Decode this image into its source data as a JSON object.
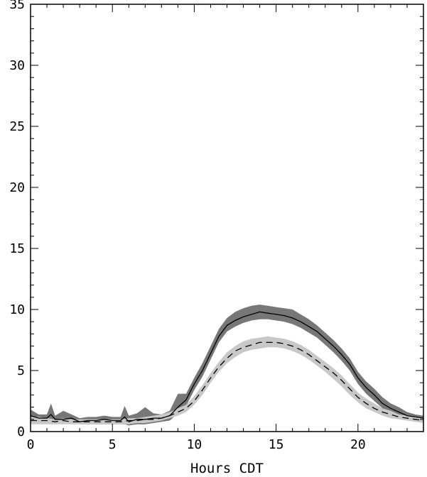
{
  "chart_data": {
    "type": "line",
    "title": "",
    "xlabel": "Hours CDT",
    "ylabel": "",
    "xlim": [
      0,
      24
    ],
    "ylim": [
      0,
      35
    ],
    "x_ticks": [
      0,
      5,
      10,
      15,
      20
    ],
    "y_ticks": [
      0,
      5,
      10,
      15,
      20,
      25,
      30,
      35
    ],
    "x_tick_labels": [
      "0",
      "5",
      "10",
      "15",
      "20"
    ],
    "y_tick_labels": [
      "0",
      "5",
      "10",
      "15",
      "20",
      "25",
      "30",
      "35"
    ],
    "grid": false,
    "legend": "none",
    "series": [
      {
        "style": "solid",
        "line_color": "#000000",
        "band_color": "#777777",
        "x": [
          0,
          0.5,
          1,
          1.25,
          1.5,
          2,
          2.5,
          3,
          3.5,
          4,
          4.5,
          5,
          5.5,
          5.75,
          6,
          6.5,
          7,
          7.5,
          8,
          8.5,
          9,
          9.5,
          10,
          10.5,
          11,
          11.5,
          12,
          12.5,
          13,
          13.5,
          14,
          14.5,
          15,
          15.5,
          16,
          16.5,
          17,
          17.5,
          18,
          18.5,
          19,
          19.5,
          20,
          20.5,
          21,
          21.5,
          22,
          22.5,
          23,
          23.5,
          24
        ],
        "values": [
          1.3,
          1.1,
          1.1,
          1.4,
          1.0,
          1.0,
          1.1,
          0.8,
          0.9,
          0.9,
          1.0,
          0.9,
          0.9,
          1.2,
          0.8,
          1.0,
          1.0,
          1.1,
          1.1,
          1.3,
          2.0,
          2.6,
          3.9,
          5.0,
          6.4,
          7.8,
          8.7,
          9.1,
          9.4,
          9.6,
          9.8,
          9.7,
          9.6,
          9.5,
          9.3,
          9.0,
          8.6,
          8.2,
          7.6,
          7.0,
          6.3,
          5.5,
          4.4,
          3.6,
          3.0,
          2.3,
          1.9,
          1.6,
          1.3,
          1.2,
          1.1
        ],
        "lower": [
          0.9,
          0.8,
          0.8,
          0.9,
          0.7,
          0.7,
          0.7,
          0.6,
          0.6,
          0.6,
          0.6,
          0.6,
          0.6,
          0.6,
          0.5,
          0.6,
          0.6,
          0.7,
          0.8,
          0.9,
          1.5,
          2.1,
          3.4,
          4.5,
          5.9,
          7.3,
          8.2,
          8.6,
          8.9,
          9.1,
          9.2,
          9.2,
          9.1,
          9.0,
          8.8,
          8.5,
          8.1,
          7.7,
          7.1,
          6.5,
          5.8,
          5.0,
          3.9,
          3.1,
          2.5,
          1.9,
          1.6,
          1.3,
          1.1,
          1.0,
          0.9
        ],
        "upper": [
          1.8,
          1.4,
          1.4,
          2.3,
          1.3,
          1.7,
          1.4,
          1.1,
          1.2,
          1.2,
          1.3,
          1.2,
          1.2,
          2.1,
          1.3,
          1.5,
          2.0,
          1.5,
          1.4,
          1.7,
          3.1,
          3.1,
          4.4,
          5.6,
          7.0,
          8.4,
          9.3,
          9.8,
          10.1,
          10.3,
          10.4,
          10.3,
          10.2,
          10.1,
          10.0,
          9.6,
          9.2,
          8.7,
          8.1,
          7.5,
          6.8,
          6.0,
          4.9,
          4.1,
          3.5,
          2.8,
          2.3,
          2.0,
          1.6,
          1.4,
          1.3
        ]
      },
      {
        "style": "dashed",
        "line_color": "#000000",
        "band_color": "#c8c8c8",
        "x": [
          0,
          0.5,
          1,
          1.5,
          2,
          2.5,
          3,
          3.5,
          4,
          4.5,
          5,
          5.5,
          6,
          6.5,
          7,
          7.5,
          8,
          8.5,
          9,
          9.5,
          10,
          10.5,
          11,
          11.5,
          12,
          12.5,
          13,
          13.5,
          14,
          14.5,
          15,
          15.5,
          16,
          16.5,
          17,
          17.5,
          18,
          18.5,
          19,
          19.5,
          20,
          20.5,
          21,
          21.5,
          22,
          22.5,
          23,
          23.5,
          24
        ],
        "values": [
          0.9,
          0.9,
          0.9,
          0.8,
          0.9,
          0.8,
          0.8,
          0.8,
          0.8,
          0.8,
          0.8,
          0.8,
          0.9,
          0.9,
          1.0,
          1.0,
          1.1,
          1.3,
          1.6,
          1.9,
          2.5,
          3.4,
          4.4,
          5.3,
          6.0,
          6.6,
          6.9,
          7.1,
          7.3,
          7.3,
          7.3,
          7.2,
          7.0,
          6.7,
          6.3,
          5.8,
          5.3,
          4.8,
          4.2,
          3.5,
          2.8,
          2.3,
          1.9,
          1.6,
          1.4,
          1.2,
          1.1,
          1.0,
          0.9
        ],
        "lower": [
          0.6,
          0.6,
          0.6,
          0.6,
          0.6,
          0.6,
          0.6,
          0.6,
          0.6,
          0.6,
          0.6,
          0.6,
          0.6,
          0.7,
          0.7,
          0.8,
          0.9,
          1.1,
          1.3,
          1.6,
          2.2,
          3.0,
          4.0,
          4.9,
          5.6,
          6.1,
          6.5,
          6.7,
          6.8,
          6.9,
          6.9,
          6.8,
          6.6,
          6.3,
          5.9,
          5.4,
          4.9,
          4.3,
          3.7,
          3.0,
          2.4,
          1.9,
          1.6,
          1.3,
          1.1,
          1.0,
          0.9,
          0.8,
          0.7
        ],
        "upper": [
          1.2,
          1.2,
          1.1,
          1.0,
          1.1,
          1.0,
          1.0,
          1.0,
          1.0,
          1.0,
          1.0,
          1.0,
          1.1,
          1.1,
          1.2,
          1.3,
          1.4,
          1.6,
          1.9,
          2.2,
          2.9,
          3.8,
          4.8,
          5.7,
          6.5,
          7.0,
          7.4,
          7.6,
          7.7,
          7.8,
          7.7,
          7.6,
          7.4,
          7.1,
          6.7,
          6.2,
          5.7,
          5.2,
          4.6,
          3.9,
          3.2,
          2.7,
          2.3,
          1.9,
          1.7,
          1.4,
          1.3,
          1.2,
          1.1
        ]
      }
    ]
  }
}
